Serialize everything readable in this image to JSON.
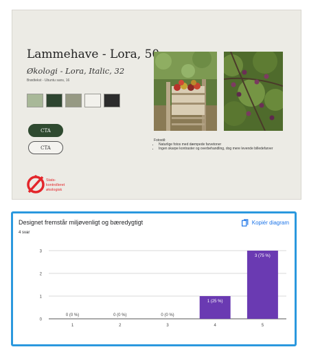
{
  "slide": {
    "title": "Lammehave - Lora, 50",
    "subtitle": "Økologi - Lora, Italic, 32",
    "body_text": "Brødtekst - Ubuntu sans, 16",
    "swatches": [
      "#a8b898",
      "#2e4530",
      "#969983",
      "#f2f1ec",
      "#2c2c2c"
    ],
    "cta_primary": "CTA",
    "cta_secondary": "CTA",
    "photo_notes": {
      "heading": "Fotostil:",
      "items": [
        "Naturlige fotos med dæmpede farvetoner",
        "Ingen skarpe kontraster og overbehandling, dog mere levende billedefarver"
      ]
    },
    "logo": {
      "icon": "state-organic-seal-icon",
      "line1": "Stats-",
      "line2": "kontrolleret",
      "line3": "økologisk",
      "color": "#e3262b"
    }
  },
  "card": {
    "title": "Designet fremstår miljøvenligt og bæredygtigt",
    "count": "4 svar",
    "copy_label": "Kopiér diagram",
    "copy_icon": "copy-icon",
    "border_color": "#2a98de"
  },
  "chart_data": {
    "type": "bar",
    "title": "Designet fremstår miljøvenligt og bæredygtigt",
    "categories": [
      "1",
      "2",
      "3",
      "4",
      "5"
    ],
    "values": [
      0,
      0,
      0,
      1,
      3
    ],
    "data_labels": [
      "0 (0 %)",
      "0 (0 %)",
      "0 (0 %)",
      "1 (25 %)",
      "3 (75 %)"
    ],
    "y_ticks": [
      0,
      1,
      2,
      3
    ],
    "ylim": [
      0,
      3
    ],
    "grid": true,
    "bar_color": "#6a3ab2"
  }
}
